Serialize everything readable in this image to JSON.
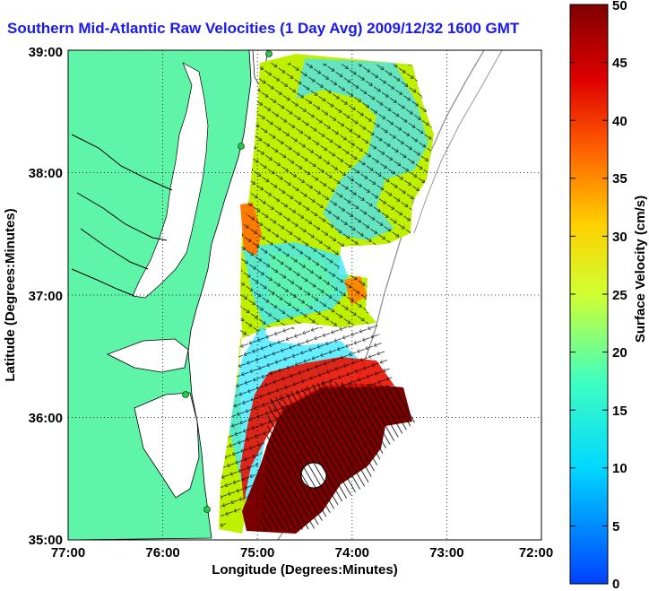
{
  "title": "Southern Mid-Atlantic Raw Velocities (1 Day Avg) 2009/12/32 1600 GMT",
  "map": {
    "xlabel": "Longitude (Degrees:Minutes)",
    "ylabel": "Latitude (Degrees:Minutes)",
    "x_ticks": [
      "77:00",
      "76:00",
      "75:00",
      "74:00",
      "73:00",
      "72:00"
    ],
    "y_ticks": [
      "39:00",
      "38:00",
      "37:00",
      "36:00",
      "35:00"
    ],
    "lon_range": [
      -77,
      -72
    ],
    "lat_range": [
      35,
      39
    ],
    "land_color": "#5ef5a8",
    "grid": "dotted"
  },
  "colorbar": {
    "label": "Surface Velocity (cm/s)",
    "ticks": [
      "50",
      "45",
      "40",
      "35",
      "30",
      "25",
      "20",
      "15",
      "10",
      "5",
      "0"
    ],
    "range": [
      0,
      50
    ],
    "colormap": "jet"
  }
}
